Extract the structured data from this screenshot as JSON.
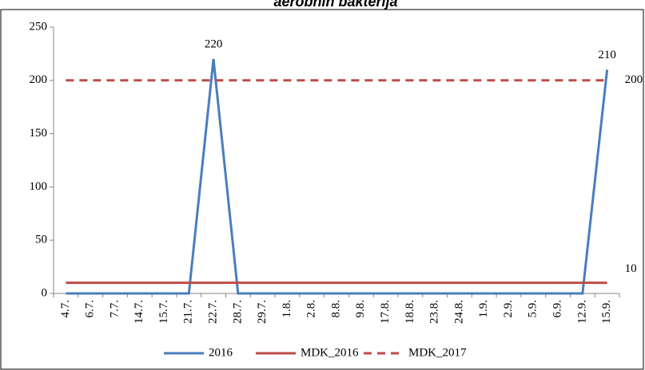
{
  "chart_data": {
    "type": "line",
    "title": "aerobnih bakterija",
    "categories": [
      "4.7.",
      "6.7.",
      "7.7.",
      "14.7.",
      "15.7.",
      "21.7.",
      "22.7.",
      "28.7.",
      "29.7.",
      "1.8.",
      "2.8.",
      "8.8.",
      "9.8.",
      "17.8.",
      "18.8.",
      "23.8.",
      "24.8.",
      "1.9.",
      "2.9.",
      "5.9.",
      "6.9.",
      "12.9.",
      "15.9."
    ],
    "series": [
      {
        "name": "2016",
        "color": "#4a7ebb",
        "dashed": false,
        "values": [
          0,
          0,
          0,
          0,
          0,
          0,
          220,
          0,
          0,
          0,
          0,
          0,
          0,
          0,
          0,
          0,
          0,
          0,
          0,
          0,
          0,
          0,
          210
        ],
        "value_labels": [
          null,
          null,
          null,
          null,
          null,
          null,
          "220",
          null,
          null,
          null,
          null,
          null,
          null,
          null,
          null,
          null,
          null,
          null,
          null,
          null,
          null,
          null,
          "210"
        ]
      },
      {
        "name": "MDK_2016",
        "color": "#be4b48",
        "dashed": false,
        "values": [
          10,
          10,
          10,
          10,
          10,
          10,
          10,
          10,
          10,
          10,
          10,
          10,
          10,
          10,
          10,
          10,
          10,
          10,
          10,
          10,
          10,
          10,
          10
        ],
        "value_labels": [
          null,
          null,
          null,
          null,
          null,
          null,
          null,
          null,
          null,
          null,
          null,
          null,
          null,
          null,
          null,
          null,
          null,
          null,
          null,
          null,
          null,
          null,
          "10"
        ]
      },
      {
        "name": "MDK_2017",
        "color": "#be4b48",
        "dashed": true,
        "values": [
          200,
          200,
          200,
          200,
          200,
          200,
          200,
          200,
          200,
          200,
          200,
          200,
          200,
          200,
          200,
          200,
          200,
          200,
          200,
          200,
          200,
          200,
          200
        ],
        "value_labels": [
          null,
          null,
          null,
          null,
          null,
          null,
          null,
          null,
          null,
          null,
          null,
          null,
          null,
          null,
          null,
          null,
          null,
          null,
          null,
          null,
          null,
          null,
          "200"
        ]
      }
    ],
    "ylim": [
      0,
      250
    ],
    "yticks": [
      0,
      50,
      100,
      150,
      200,
      250
    ],
    "grid": false,
    "legend": "bottom"
  }
}
